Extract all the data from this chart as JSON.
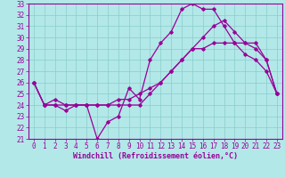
{
  "xlabel": "Windchill (Refroidissement éolien,°C)",
  "xlim": [
    -0.5,
    23.5
  ],
  "ylim": [
    21,
    33
  ],
  "yticks": [
    21,
    22,
    23,
    24,
    25,
    26,
    27,
    28,
    29,
    30,
    31,
    32,
    33
  ],
  "xticks": [
    0,
    1,
    2,
    3,
    4,
    5,
    6,
    7,
    8,
    9,
    10,
    11,
    12,
    13,
    14,
    15,
    16,
    17,
    18,
    19,
    20,
    21,
    22,
    23
  ],
  "background_color": "#b3e8e8",
  "grid_color": "#88cccc",
  "line_color": "#990099",
  "line1_x": [
    0,
    1,
    2,
    3,
    4,
    5,
    6,
    7,
    8,
    9,
    10,
    11,
    12,
    13,
    14,
    15,
    16,
    17,
    18,
    19,
    20,
    21,
    22,
    23
  ],
  "line1_y": [
    26,
    24,
    24,
    23.5,
    24,
    24,
    21,
    22.5,
    23,
    25.5,
    24.5,
    28,
    29.5,
    30.5,
    32.5,
    33,
    32.5,
    32.5,
    31,
    29.5,
    28.5,
    28,
    27,
    25
  ],
  "line2_x": [
    0,
    1,
    2,
    3,
    4,
    5,
    6,
    7,
    8,
    9,
    10,
    11,
    12,
    13,
    14,
    15,
    16,
    17,
    18,
    19,
    20,
    21,
    22,
    23
  ],
  "line2_y": [
    26,
    24,
    24.5,
    24,
    24,
    24,
    24,
    24,
    24.5,
    24.5,
    25,
    25.5,
    26,
    27,
    28,
    29,
    29,
    29.5,
    29.5,
    29.5,
    29.5,
    29.5,
    28,
    25
  ],
  "line3_x": [
    0,
    1,
    2,
    3,
    4,
    5,
    6,
    7,
    8,
    9,
    10,
    11,
    12,
    13,
    14,
    15,
    16,
    17,
    18,
    19,
    20,
    21,
    22,
    23
  ],
  "line3_y": [
    26,
    24,
    24,
    24,
    24,
    24,
    24,
    24,
    24,
    24,
    24,
    25,
    26,
    27,
    28,
    29,
    30,
    31,
    31.5,
    30.5,
    29.5,
    29,
    28,
    25
  ],
  "tick_fontsize": 5.5,
  "xlabel_fontsize": 6.0
}
